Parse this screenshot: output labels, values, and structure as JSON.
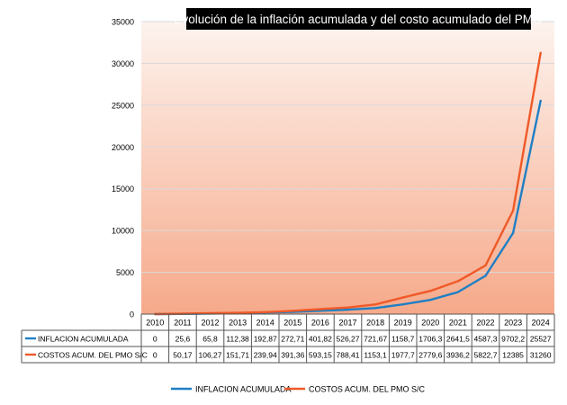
{
  "chart_data": {
    "type": "line",
    "title": "Evolución de la inflación acumulada y del costo acumulado del PMO",
    "x": [
      "2010",
      "2011",
      "2012",
      "2013",
      "2014",
      "2015",
      "2016",
      "2017",
      "2018",
      "2019",
      "2020",
      "2021",
      "2022",
      "2023",
      "2024"
    ],
    "series": [
      {
        "name": "INFLACION ACUMULADA",
        "color": "#1f7fc4",
        "values": [
          0,
          25.6,
          65.8,
          112.38,
          192.87,
          272.71,
          401.82,
          526.27,
          721.67,
          1158.7,
          1706.3,
          2641.5,
          4587.3,
          9702.2,
          25527
        ],
        "labels": [
          "0",
          "25,6",
          "65,8",
          "112,38",
          "192,87",
          "272,71",
          "401,82",
          "526,27",
          "721,67",
          "1158,7",
          "1706,3",
          "2641,5",
          "4587,3",
          "9702,2",
          "25527"
        ]
      },
      {
        "name": "COSTOS ACUM. DEL PMO S/C",
        "color": "#ef5a28",
        "values": [
          0,
          50.17,
          106.27,
          151.71,
          239.94,
          391.36,
          593.15,
          788.41,
          1153.1,
          1977.7,
          2779.6,
          3936.2,
          5822.7,
          12385,
          31260
        ],
        "labels": [
          "0",
          "50,17",
          "106,27",
          "151,71",
          "239,94",
          "391,36",
          "593,15",
          "788,41",
          "1153,1",
          "1977,7",
          "2779,6",
          "3936,2",
          "5822,7",
          "12385",
          "31260"
        ]
      }
    ],
    "ylim": [
      0,
      35000
    ],
    "yticks": [
      "0",
      "5000",
      "10000",
      "15000",
      "20000",
      "25000",
      "30000",
      "35000"
    ],
    "grid": true,
    "legend_position": "bottom",
    "background_gradient": [
      "#fdf3ee",
      "#f6a98a"
    ]
  }
}
